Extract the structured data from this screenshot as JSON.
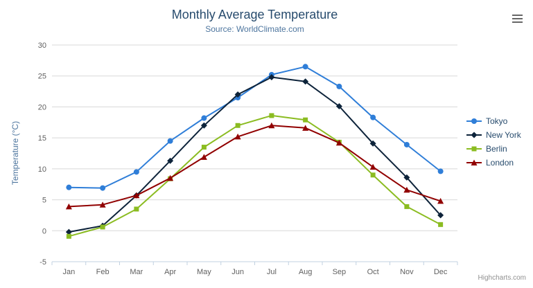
{
  "header": {
    "menu_icon": "hamburger-icon"
  },
  "credits": {
    "label": "Highcharts.com"
  },
  "chart_data": {
    "type": "line",
    "title": "Monthly Average Temperature",
    "subtitle": "Source: WorldClimate.com",
    "xlabel": "",
    "ylabel": "Temperature (°C)",
    "ylim": [
      -5,
      30
    ],
    "y_ticks": [
      -5,
      0,
      5,
      10,
      15,
      20,
      25,
      30
    ],
    "grid": true,
    "legend_position": "right",
    "categories": [
      "Jan",
      "Feb",
      "Mar",
      "Apr",
      "May",
      "Jun",
      "Jul",
      "Aug",
      "Sep",
      "Oct",
      "Nov",
      "Dec"
    ],
    "series": [
      {
        "name": "Tokyo",
        "color": "#2f7ed8",
        "marker": "circle",
        "values": [
          7.0,
          6.9,
          9.5,
          14.5,
          18.2,
          21.5,
          25.2,
          26.5,
          23.3,
          18.3,
          13.9,
          9.6
        ]
      },
      {
        "name": "New York",
        "color": "#0d233a",
        "marker": "diamond",
        "values": [
          -0.2,
          0.8,
          5.7,
          11.3,
          17.0,
          22.0,
          24.8,
          24.1,
          20.1,
          14.1,
          8.6,
          2.5
        ]
      },
      {
        "name": "Berlin",
        "color": "#8bbc21",
        "marker": "square",
        "values": [
          -0.9,
          0.6,
          3.5,
          8.4,
          13.5,
          17.0,
          18.6,
          17.9,
          14.3,
          9.0,
          3.9,
          1.0
        ]
      },
      {
        "name": "London",
        "color": "#910000",
        "marker": "triangle",
        "values": [
          3.9,
          4.2,
          5.7,
          8.5,
          11.9,
          15.2,
          17.0,
          16.6,
          14.2,
          10.3,
          6.6,
          4.8
        ]
      }
    ]
  }
}
